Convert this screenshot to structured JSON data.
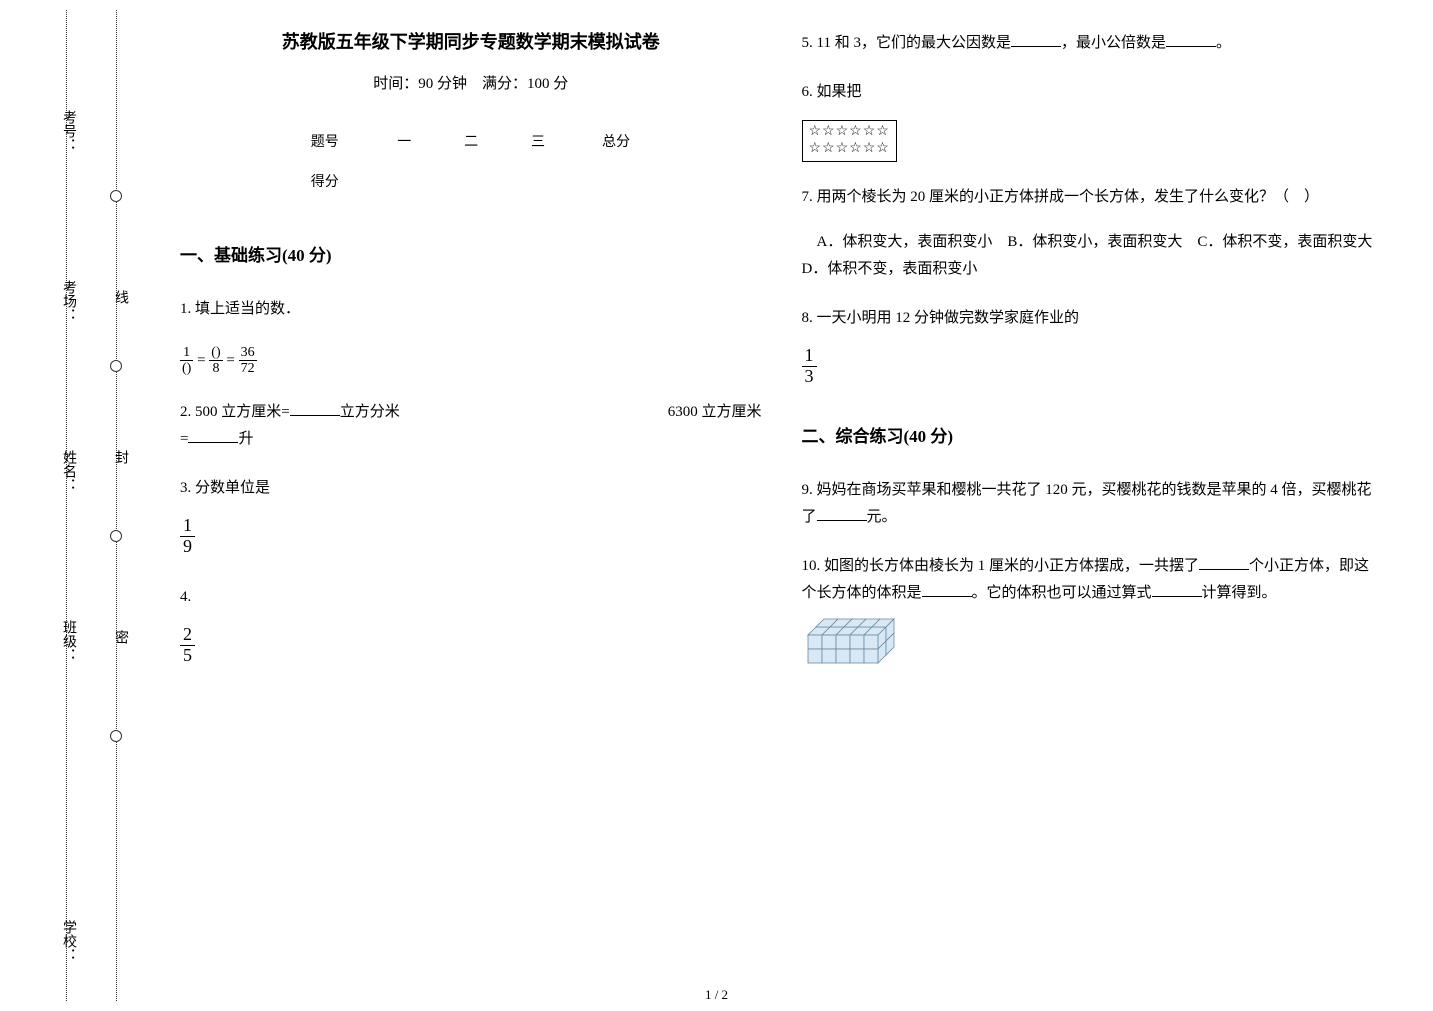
{
  "binding": {
    "labels": [
      "考号：",
      "考场：",
      "姓名：",
      "班级：",
      "学校："
    ],
    "seal_chars": [
      "密",
      "封",
      "线"
    ]
  },
  "header": {
    "title": "苏教版五年级下学期同步专题数学期末模拟试卷",
    "subtitle": "时间：90 分钟　满分：100 分"
  },
  "score_table": {
    "row1": [
      "题号",
      "一",
      "二",
      "三",
      "总分"
    ],
    "row2_label": "得分"
  },
  "section1": {
    "heading": "一、基础练习(40 分)",
    "q1": {
      "text": "1.  填上适当的数．",
      "frac_chain": {
        "a_num": "1",
        "a_den": "()",
        "b_num": "()",
        "b_den": "8",
        "c_num": "36",
        "c_den": "72"
      }
    },
    "q2": {
      "prefix": "2.  500 立方厘米=",
      "mid": "立方分米",
      "right": "6300 立方厘米",
      "line2_prefix": "=",
      "line2_unit": "升"
    },
    "q3": {
      "text": "3.  分数单位是",
      "frac_num": "1",
      "frac_den": "9"
    },
    "q4": {
      "text": "4.",
      "frac_num": "2",
      "frac_den": "5"
    },
    "q5": {
      "prefix": "5.  11 和 3，它们的最大公因数是",
      "mid": "，最小公倍数是",
      "suffix": "。"
    },
    "q6": {
      "text": "6.  如果把",
      "stars_row": "☆☆☆☆☆☆"
    },
    "q7": {
      "text": "7.  用两个棱长为 20 厘米的小正方体拼成一个长方体，发生了什么变化？（　）",
      "options": "　A．体积变大，表面积变小　B．体积变小，表面积变大　C．体积不变，表面积变大　D．体积不变，表面积变小"
    },
    "q8": {
      "text": "8.  一天小明用 12 分钟做完数学家庭作业的",
      "frac_num": "1",
      "frac_den": "3"
    }
  },
  "section2": {
    "heading": "二、综合练习(40 分)",
    "q9": {
      "prefix": "9.  妈妈在商场买苹果和樱桃一共花了 120 元，买樱桃花的钱数是苹果的 4 倍，买樱桃花了",
      "suffix": "元。"
    },
    "q10": {
      "prefix": "10.  如图的长方体由棱长为 1 厘米的小正方体摆成，一共摆了",
      "mid1": "个小正方体，即这个长方体的体积是",
      "mid2": "。它的体积也可以通过算式",
      "suffix": "计算得到。",
      "cuboid": {
        "cols": 5,
        "rows": 2,
        "depth": 2,
        "cell": 14,
        "fill": "#d8e8f4",
        "stroke": "#6a8aa0"
      }
    }
  },
  "page_num": "1 / 2"
}
